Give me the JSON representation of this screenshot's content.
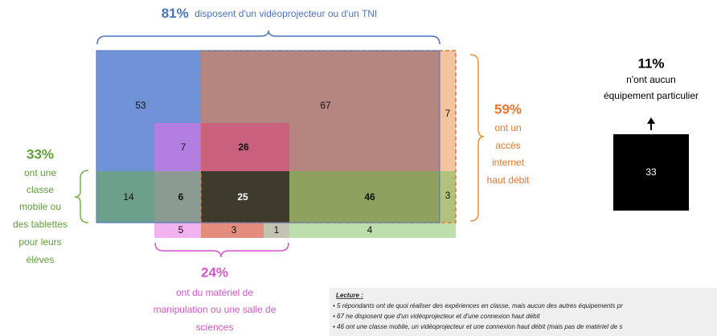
{
  "top": {
    "percent": "81%",
    "text": "disposent d'un vidéoprojecteur ou d'un TNI"
  },
  "right": {
    "percent": "59%",
    "lines": [
      "ont un",
      "accès",
      "internet",
      "haut débit"
    ]
  },
  "left": {
    "percent": "33%",
    "lines": [
      "ont une",
      "classe",
      "mobile ou",
      "des tablettes",
      "pour leurs",
      "élèves"
    ]
  },
  "bottom": {
    "percent": "24%",
    "lines": [
      "ont du matériel de",
      "manipulation ou une salle de",
      "sciences"
    ]
  },
  "none": {
    "percent": "11%",
    "lines": [
      "n'ont aucun",
      "équipement particulier"
    ],
    "value": "33"
  },
  "cells": [
    "53",
    "67",
    "7",
    "7",
    "26",
    "14",
    "6",
    "25",
    "46",
    "3",
    "5",
    "3",
    "1",
    "4"
  ],
  "lecture": {
    "title": "Lecture :",
    "lines": [
      "• 5 répondants ont de quoi réaliser des expériences en classe, mais aucun des autres équipements pr",
      "• 67 ne disposent que d'un vidéoprojecteur et d'une connexion haut débit",
      "• 46 ont une classe mobile, un vidéoprojecteur et une connexion haut débit (mais pas de matériel de s"
    ]
  }
}
